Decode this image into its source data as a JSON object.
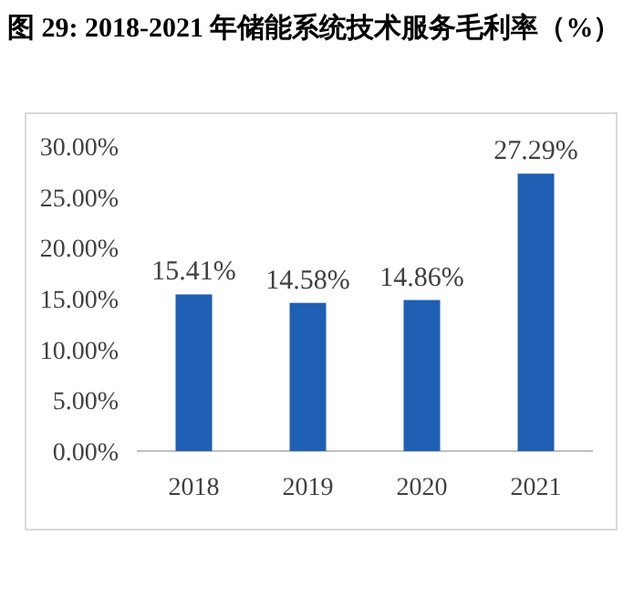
{
  "chart_data": {
    "type": "bar",
    "title": "图 29: 2018-2021 年储能系统技术服务毛利率（%）",
    "categories": [
      "2018",
      "2019",
      "2020",
      "2021"
    ],
    "values": [
      15.41,
      14.58,
      14.86,
      27.29
    ],
    "value_labels": [
      "15.41%",
      "14.58%",
      "14.86%",
      "27.29%"
    ],
    "color": "#1f5fb4",
    "ylim": [
      0,
      30
    ],
    "yticks": [
      {
        "value": 0,
        "label": "0.00%"
      },
      {
        "value": 5,
        "label": "5.00%"
      },
      {
        "value": 10,
        "label": "10.00%"
      },
      {
        "value": 15,
        "label": "15.00%"
      },
      {
        "value": 20,
        "label": "20.00%"
      },
      {
        "value": 25,
        "label": "25.00%"
      },
      {
        "value": 30,
        "label": "30.00%"
      }
    ],
    "grid": false
  }
}
